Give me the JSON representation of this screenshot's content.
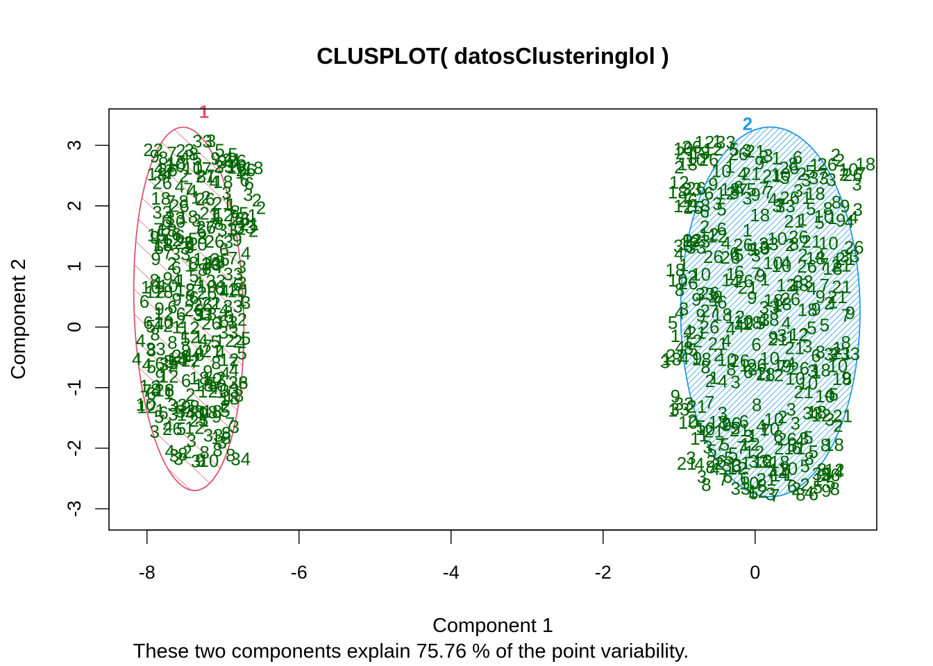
{
  "chart_data": {
    "type": "scatter",
    "title": "CLUSPLOT( datosClusteringlol )",
    "xlabel": "Component 1",
    "ylabel": "Component 2",
    "subtitle": "These two components explain 75.76 % of the point variability.",
    "xlim": [
      -8.5,
      1.6
    ],
    "ylim": [
      -3.35,
      3.6
    ],
    "x_ticks": [
      -8,
      -6,
      -4,
      -2,
      0
    ],
    "y_ticks": [
      -3,
      -2,
      -1,
      0,
      1,
      2,
      3
    ],
    "grid": false,
    "point_color": "#006400",
    "clusters": [
      {
        "label": "1",
        "color": "#DF536B",
        "shading": "sparse-hatch",
        "center": [
          -7.45,
          0.3
        ],
        "semi_axis_x": 0.72,
        "semi_axis_y": 3.0,
        "rotation_deg": -2,
        "label_position": [
          -7.25,
          3.45
        ],
        "point_bands": [
          {
            "y": 2.8,
            "x_from": -7.9,
            "x_to": -6.7
          },
          {
            "y": 2.5,
            "x_from": -7.8,
            "x_to": -6.6
          },
          {
            "y": 2.0,
            "x_from": -7.8,
            "x_to": -6.5
          },
          {
            "y": 1.6,
            "x_from": -7.85,
            "x_to": -6.6
          },
          {
            "y": 1.2,
            "x_from": -7.9,
            "x_to": -6.7
          },
          {
            "y": 0.8,
            "x_from": -7.9,
            "x_to": -6.75
          },
          {
            "y": 0.4,
            "x_from": -7.95,
            "x_to": -6.7
          },
          {
            "y": 0.0,
            "x_from": -7.95,
            "x_to": -6.7
          },
          {
            "y": -0.4,
            "x_from": -8.0,
            "x_to": -6.75
          },
          {
            "y": -0.8,
            "x_from": -8.0,
            "x_to": -6.8
          },
          {
            "y": -1.2,
            "x_from": -8.0,
            "x_to": -6.8
          },
          {
            "y": -1.6,
            "x_from": -7.9,
            "x_to": -6.85
          },
          {
            "y": -2.0,
            "x_from": -7.7,
            "x_to": -6.9
          }
        ],
        "left_labels": [
          {
            "text": "22",
            "x": -8.05,
            "y": 2.9
          },
          {
            "text": "18",
            "x": -8.0,
            "y": 2.5
          },
          {
            "text": "18",
            "x": -7.95,
            "y": 2.1
          },
          {
            "text": "15",
            "x": -8.0,
            "y": 1.5
          },
          {
            "text": "9",
            "x": -7.95,
            "y": 1.1
          },
          {
            "text": "6",
            "x": -8.1,
            "y": 0.4
          },
          {
            "text": "6",
            "x": -8.05,
            "y": 0.05
          },
          {
            "text": "4",
            "x": -8.15,
            "y": -0.25
          },
          {
            "text": "4",
            "x": -8.2,
            "y": -0.55
          },
          {
            "text": "1",
            "x": -8.1,
            "y": -1.0
          },
          {
            "text": "10",
            "x": -8.15,
            "y": -1.3
          },
          {
            "text": "34",
            "x": -6.9,
            "y": -2.2
          }
        ]
      },
      {
        "label": "2",
        "color": "#2297E6",
        "shading": "dense-hatch",
        "center": [
          0.2,
          0.25
        ],
        "semi_axis_x": 1.18,
        "semi_axis_y": 3.05,
        "rotation_deg": 0,
        "label_position": [
          -0.1,
          3.25
        ],
        "point_bands": [
          {
            "y": 2.85,
            "x_from": -1.0,
            "x_to": 1.45
          },
          {
            "y": 2.2,
            "x_from": -1.0,
            "x_to": 1.35
          },
          {
            "y": 1.45,
            "x_from": -1.0,
            "x_to": 1.3
          },
          {
            "y": 0.75,
            "x_from": -1.05,
            "x_to": 1.25
          },
          {
            "y": 0.05,
            "x_from": -1.05,
            "x_to": 1.25
          },
          {
            "y": -0.6,
            "x_from": -1.1,
            "x_to": 1.2
          },
          {
            "y": -1.4,
            "x_from": -1.05,
            "x_to": 1.15
          },
          {
            "y": -2.0,
            "x_from": -0.9,
            "x_to": 1.1
          },
          {
            "y": -2.4,
            "x_from": -0.7,
            "x_to": 1.05
          }
        ],
        "left_labels": [
          {
            "text": "21",
            "x": -1.05,
            "y": 2.85
          },
          {
            "text": "18",
            "x": -1.15,
            "y": 2.2
          },
          {
            "text": "15",
            "x": -0.95,
            "y": 1.95
          },
          {
            "text": "12",
            "x": -1.0,
            "y": 1.35
          },
          {
            "text": "10",
            "x": -1.15,
            "y": 0.75
          },
          {
            "text": "5",
            "x": -1.15,
            "y": 0.05
          },
          {
            "text": "3",
            "x": -1.25,
            "y": -0.6
          },
          {
            "text": "1",
            "x": -1.15,
            "y": -1.4
          }
        ]
      }
    ]
  }
}
